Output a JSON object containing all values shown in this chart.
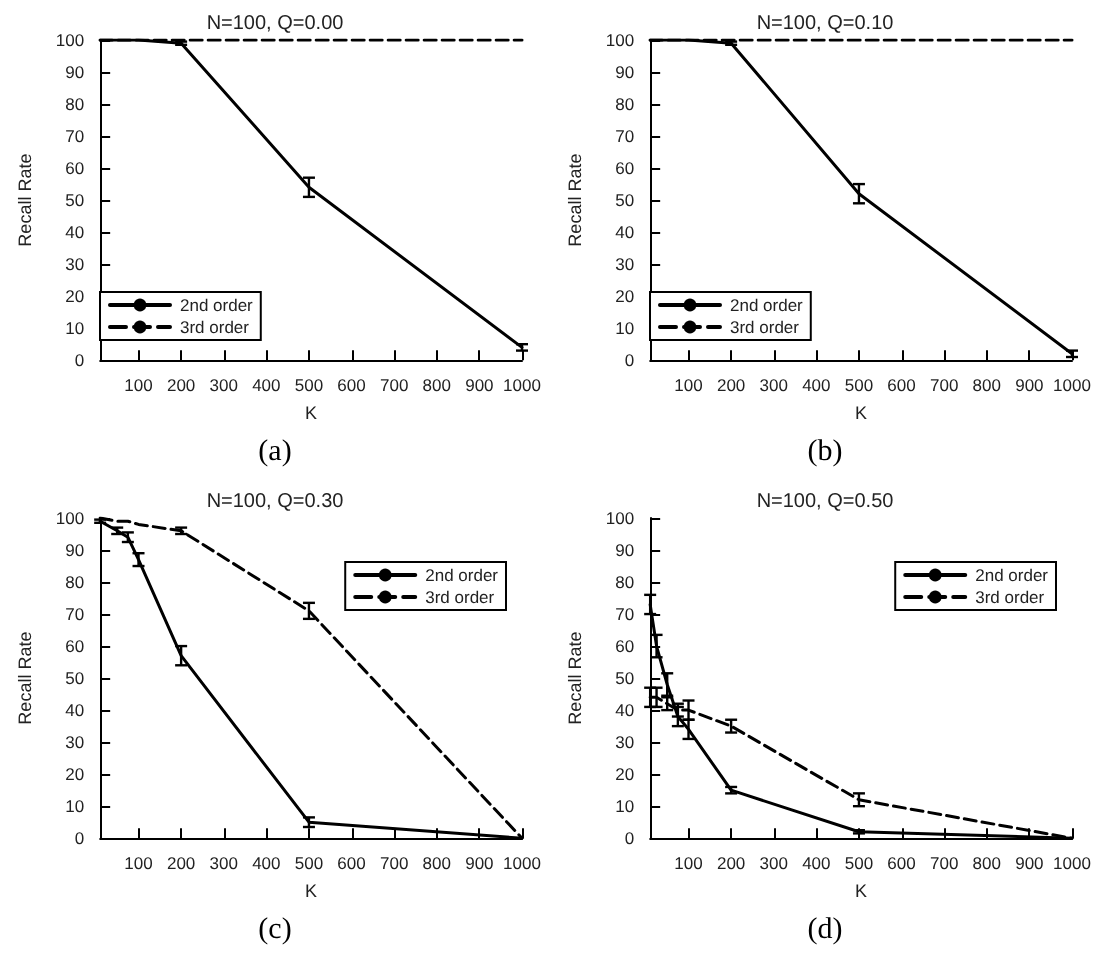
{
  "chart_data": [
    {
      "type": "line",
      "title": "N=100, Q=0.00",
      "xlabel": "K",
      "ylabel": "Recall Rate",
      "annotations": [
        "(a)"
      ],
      "xlim": [
        10,
        1000
      ],
      "ylim": [
        0,
        100
      ],
      "xticks": [
        100,
        200,
        300,
        400,
        500,
        600,
        700,
        800,
        900,
        1000
      ],
      "yticks": [
        0,
        10,
        20,
        30,
        40,
        50,
        60,
        70,
        80,
        90,
        100
      ],
      "legend": "bottom left",
      "marker": "none",
      "grid": false,
      "series": [
        {
          "name": "2nd order",
          "color": "#000000",
          "line_style": "solid",
          "x": [
            10,
            50,
            75,
            100,
            200,
            500,
            1000
          ],
          "values": [
            100,
            100,
            100,
            100,
            99,
            54,
            4
          ],
          "errors": [
            null,
            null,
            null,
            null,
            0.5,
            3,
            1
          ]
        },
        {
          "name": "3rd order",
          "color": "#000000",
          "line_style": "dashed",
          "x": [
            10,
            50,
            75,
            100,
            200,
            500,
            1000
          ],
          "values": [
            100,
            100,
            100,
            100,
            100,
            100,
            100
          ]
        }
      ]
    },
    {
      "type": "line",
      "title": "N=100, Q=0.10",
      "xlabel": "K",
      "ylabel": "Recall Rate",
      "annotations": [
        "(b)"
      ],
      "xlim": [
        10,
        1000
      ],
      "ylim": [
        0,
        100
      ],
      "xticks": [
        100,
        200,
        300,
        400,
        500,
        600,
        700,
        800,
        900,
        1000
      ],
      "yticks": [
        0,
        10,
        20,
        30,
        40,
        50,
        60,
        70,
        80,
        90,
        100
      ],
      "legend": "bottom left",
      "marker": "none",
      "grid": false,
      "series": [
        {
          "name": "2nd order",
          "color": "#000000",
          "line_style": "solid",
          "x": [
            10,
            50,
            75,
            100,
            200,
            500,
            1000
          ],
          "values": [
            100,
            100,
            100,
            100,
            99,
            52,
            2
          ],
          "errors": [
            null,
            null,
            null,
            null,
            0.5,
            3,
            1
          ]
        },
        {
          "name": "3rd order",
          "color": "#000000",
          "line_style": "dashed",
          "x": [
            10,
            50,
            75,
            100,
            200,
            500,
            1000
          ],
          "values": [
            100,
            100,
            100,
            100,
            100,
            100,
            100
          ]
        }
      ]
    },
    {
      "type": "line",
      "title": "N=100, Q=0.30",
      "xlabel": "K",
      "ylabel": "Recall Rate",
      "annotations": [
        "(c)"
      ],
      "xlim": [
        10,
        1000
      ],
      "ylim": [
        0,
        100
      ],
      "xticks": [
        100,
        200,
        300,
        400,
        500,
        600,
        700,
        800,
        900,
        1000
      ],
      "yticks": [
        0,
        10,
        20,
        30,
        40,
        50,
        60,
        70,
        80,
        90,
        100
      ],
      "legend": "top right",
      "marker": "none",
      "grid": false,
      "series": [
        {
          "name": "2nd order",
          "color": "#000000",
          "line_style": "solid",
          "x": [
            10,
            50,
            75,
            100,
            200,
            500,
            1000
          ],
          "values": [
            99,
            96,
            94,
            87,
            57,
            5,
            0
          ],
          "errors": [
            0.5,
            1,
            1.5,
            2,
            3,
            1.5,
            null
          ]
        },
        {
          "name": "3rd order",
          "color": "#000000",
          "line_style": "dashed",
          "x": [
            10,
            50,
            75,
            100,
            200,
            500,
            1000
          ],
          "values": [
            100,
            99,
            99,
            98,
            96,
            71,
            0
          ],
          "errors": [
            null,
            null,
            null,
            null,
            1,
            2.5,
            null
          ]
        }
      ]
    },
    {
      "type": "line",
      "title": "N=100, Q=0.50",
      "xlabel": "K",
      "ylabel": "Recall Rate",
      "annotations": [
        "(d)"
      ],
      "xlim": [
        10,
        1000
      ],
      "ylim": [
        0,
        100
      ],
      "xticks": [
        100,
        200,
        300,
        400,
        500,
        600,
        700,
        800,
        900,
        1000
      ],
      "yticks": [
        0,
        10,
        20,
        30,
        40,
        50,
        60,
        70,
        80,
        90,
        100
      ],
      "legend": "top right",
      "marker": "none",
      "grid": false,
      "series": [
        {
          "name": "2nd order",
          "color": "#000000",
          "line_style": "solid",
          "x": [
            10,
            25,
            50,
            75,
            100,
            200,
            500,
            1000
          ],
          "values": [
            73,
            60,
            48,
            38,
            34,
            15,
            2,
            0
          ],
          "errors": [
            3,
            3.5,
            3.5,
            3,
            3,
            1,
            0.5,
            null
          ]
        },
        {
          "name": "3rd order",
          "color": "#000000",
          "line_style": "dashed",
          "x": [
            10,
            25,
            50,
            75,
            100,
            200,
            500,
            1000
          ],
          "values": [
            44,
            44,
            42,
            40,
            40,
            35,
            12,
            0
          ],
          "errors": [
            3,
            3,
            2,
            2,
            3,
            2,
            2,
            null
          ]
        }
      ]
    }
  ]
}
